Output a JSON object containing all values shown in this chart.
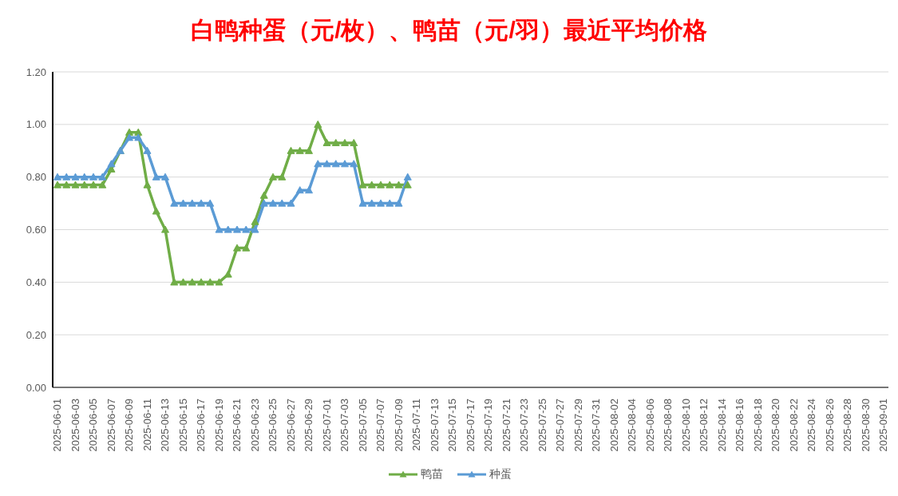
{
  "chart_data": {
    "type": "line",
    "title": "白鸭种蛋（元/枚）、鸭苗（元/羽）最近平均价格",
    "categories": [
      "2025-06-01",
      null,
      "2025-06-03",
      null,
      "2025-06-05",
      null,
      "2025-06-07",
      null,
      "2025-06-09",
      null,
      "2025-06-11",
      null,
      "2025-06-13",
      null,
      "2025-06-15",
      null,
      "2025-06-17",
      null,
      "2025-06-19",
      null,
      "2025-06-21",
      null,
      "2025-06-23",
      null,
      "2025-06-25",
      null,
      "2025-06-27",
      null,
      "2025-06-29",
      null,
      "2025-07-01",
      null,
      "2025-07-03",
      null,
      "2025-07-05",
      null,
      "2025-07-07",
      null,
      "2025-07-09",
      null,
      "2025-07-11",
      null,
      "2025-07-13",
      null,
      "2025-07-15",
      null,
      "2025-07-17",
      null,
      "2025-07-19",
      null,
      "2025-07-21",
      null,
      "2025-07-23",
      null,
      "2025-07-25",
      null,
      "2025-07-27",
      null,
      "2025-07-29",
      null,
      "2025-07-31",
      null,
      "2025-08-02",
      null,
      "2025-08-04",
      null,
      "2025-08-06",
      null,
      "2025-08-08",
      null,
      "2025-08-10",
      null,
      "2025-08-12",
      null,
      "2025-08-14",
      null,
      "2025-08-16",
      null,
      "2025-08-18",
      null,
      "2025-08-20",
      null,
      "2025-08-22",
      null,
      "2025-08-24",
      null,
      "2025-08-26",
      null,
      "2025-08-28",
      null,
      "2025-08-30",
      null,
      "2025-09-01"
    ],
    "series": [
      {
        "name": "鸭苗",
        "color": "#70ad47",
        "values": [
          0.77,
          0.77,
          0.77,
          0.77,
          0.77,
          0.77,
          0.83,
          0.9,
          0.97,
          0.97,
          0.77,
          0.67,
          0.6,
          0.4,
          0.4,
          0.4,
          0.4,
          0.4,
          0.4,
          0.43,
          0.53,
          0.53,
          0.63,
          0.73,
          0.8,
          0.8,
          0.9,
          0.9,
          0.9,
          1.0,
          0.93,
          0.93,
          0.93,
          0.93,
          0.77,
          0.77,
          0.77,
          0.77,
          0.77,
          0.77,
          null,
          null,
          null,
          null,
          null,
          null,
          null,
          null,
          null,
          null,
          null,
          null,
          null,
          null,
          null,
          null,
          null,
          null,
          null,
          null,
          null,
          null,
          null,
          null,
          null,
          null,
          null,
          null,
          null,
          null,
          null,
          null,
          null,
          null,
          null,
          null,
          null,
          null,
          null,
          null,
          null,
          null,
          null,
          null,
          null,
          null,
          null,
          null,
          null,
          null,
          null,
          null,
          null
        ]
      },
      {
        "name": "种蛋",
        "color": "#5b9bd5",
        "values": [
          0.8,
          0.8,
          0.8,
          0.8,
          0.8,
          0.8,
          0.85,
          0.9,
          0.95,
          0.95,
          0.9,
          0.8,
          0.8,
          0.7,
          0.7,
          0.7,
          0.7,
          0.7,
          0.6,
          0.6,
          0.6,
          0.6,
          0.6,
          0.7,
          0.7,
          0.7,
          0.7,
          0.75,
          0.75,
          0.85,
          0.85,
          0.85,
          0.85,
          0.85,
          0.7,
          0.7,
          0.7,
          0.7,
          0.7,
          0.8,
          null,
          null,
          null,
          null,
          null,
          null,
          null,
          null,
          null,
          null,
          null,
          null,
          null,
          null,
          null,
          null,
          null,
          null,
          null,
          null,
          null,
          null,
          null,
          null,
          null,
          null,
          null,
          null,
          null,
          null,
          null,
          null,
          null,
          null,
          null,
          null,
          null,
          null,
          null,
          null,
          null,
          null,
          null,
          null,
          null,
          null,
          null,
          null,
          null,
          null,
          null,
          null,
          null
        ]
      }
    ],
    "ylim": [
      0,
      1.2
    ],
    "yticks": [
      {
        "value": 0,
        "label": "0.00"
      },
      {
        "value": 0.2,
        "label": "0.20"
      },
      {
        "value": 0.4,
        "label": "0.40"
      },
      {
        "value": 0.6,
        "label": "0.60"
      },
      {
        "value": 0.8,
        "label": "0.80"
      },
      {
        "value": 1,
        "label": "1.00"
      },
      {
        "value": 1.2,
        "label": "1.20"
      }
    ],
    "grid": "y",
    "legend": "bottom",
    "marker": "triangle",
    "line_style": "solid"
  }
}
